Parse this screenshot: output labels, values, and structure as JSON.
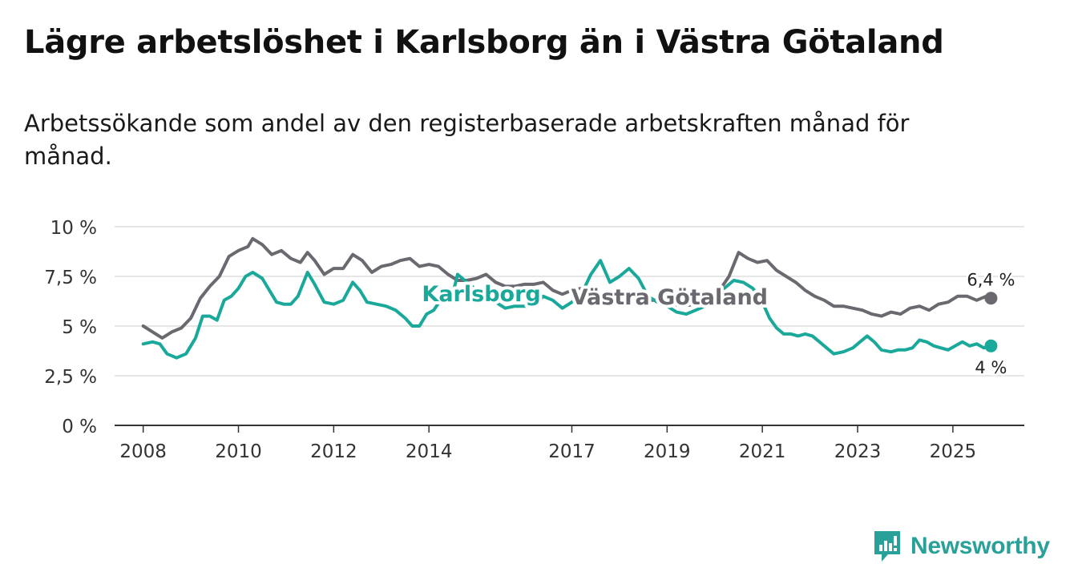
{
  "title": "Lägre arbetslöshet i Karlsborg än i Västra Götaland",
  "subtitle": "Arbetssökande som andel av den registerbaserade arbetskraften månad för månad.",
  "brand": "Newsworthy",
  "colors": {
    "karlsborg": "#1aa89a",
    "vg": "#6b6870",
    "grid": "#dddddd",
    "axis": "#333333",
    "brand": "#2aa198"
  },
  "chart_data": {
    "type": "line",
    "title": "Lägre arbetslöshet i Karlsborg än i Västra Götaland",
    "ylabel": "",
    "xlabel": "",
    "ylim": [
      0,
      10
    ],
    "xlim": [
      2007.4,
      2026.5
    ],
    "y_ticks": [
      0,
      2.5,
      5,
      7.5,
      10
    ],
    "y_tick_labels": [
      "0 %",
      "2,5 %",
      "5 %",
      "7,5 %",
      "10 %"
    ],
    "x_ticks": [
      2008,
      2010,
      2012,
      2014,
      2017,
      2019,
      2021,
      2023,
      2025
    ],
    "x_tick_labels": [
      "2008",
      "2010",
      "2012",
      "2014",
      "2017",
      "2019",
      "2021",
      "2023",
      "2025"
    ],
    "series": [
      {
        "name": "Västra Götaland",
        "label": "Västra Götaland",
        "end_label": "6,4 %",
        "points": [
          [
            2008.0,
            5.0
          ],
          [
            2008.2,
            4.7
          ],
          [
            2008.4,
            4.4
          ],
          [
            2008.6,
            4.7
          ],
          [
            2008.8,
            4.9
          ],
          [
            2009.0,
            5.4
          ],
          [
            2009.2,
            6.4
          ],
          [
            2009.4,
            7.0
          ],
          [
            2009.6,
            7.5
          ],
          [
            2009.8,
            8.5
          ],
          [
            2010.0,
            8.8
          ],
          [
            2010.2,
            9.0
          ],
          [
            2010.3,
            9.4
          ],
          [
            2010.5,
            9.1
          ],
          [
            2010.7,
            8.6
          ],
          [
            2010.9,
            8.8
          ],
          [
            2011.1,
            8.4
          ],
          [
            2011.3,
            8.2
          ],
          [
            2011.45,
            8.7
          ],
          [
            2011.6,
            8.3
          ],
          [
            2011.8,
            7.6
          ],
          [
            2012.0,
            7.9
          ],
          [
            2012.2,
            7.9
          ],
          [
            2012.4,
            8.6
          ],
          [
            2012.6,
            8.3
          ],
          [
            2012.8,
            7.7
          ],
          [
            2013.0,
            8.0
          ],
          [
            2013.2,
            8.1
          ],
          [
            2013.4,
            8.3
          ],
          [
            2013.6,
            8.4
          ],
          [
            2013.8,
            8.0
          ],
          [
            2014.0,
            8.1
          ],
          [
            2014.2,
            8.0
          ],
          [
            2014.4,
            7.6
          ],
          [
            2014.6,
            7.3
          ],
          [
            2014.8,
            7.3
          ],
          [
            2015.0,
            7.4
          ],
          [
            2015.2,
            7.6
          ],
          [
            2015.4,
            7.2
          ],
          [
            2015.6,
            7.0
          ],
          [
            2015.8,
            7.0
          ],
          [
            2016.0,
            7.1
          ],
          [
            2016.2,
            7.1
          ],
          [
            2016.4,
            7.2
          ],
          [
            2016.6,
            6.8
          ],
          [
            2016.8,
            6.6
          ],
          [
            2017.0,
            6.8
          ],
          [
            2017.2,
            6.9
          ],
          [
            2017.4,
            6.7
          ],
          [
            2017.6,
            6.5
          ],
          [
            2017.8,
            6.6
          ],
          [
            2018.0,
            6.5
          ],
          [
            2018.4,
            6.3
          ],
          [
            2018.8,
            6.3
          ],
          [
            2019.0,
            6.2
          ],
          [
            2019.3,
            6.0
          ],
          [
            2019.6,
            6.1
          ],
          [
            2019.9,
            6.2
          ],
          [
            2020.1,
            6.8
          ],
          [
            2020.3,
            7.5
          ],
          [
            2020.5,
            8.7
          ],
          [
            2020.7,
            8.4
          ],
          [
            2020.9,
            8.2
          ],
          [
            2021.1,
            8.3
          ],
          [
            2021.3,
            7.8
          ],
          [
            2021.5,
            7.5
          ],
          [
            2021.7,
            7.2
          ],
          [
            2021.9,
            6.8
          ],
          [
            2022.1,
            6.5
          ],
          [
            2022.3,
            6.3
          ],
          [
            2022.5,
            6.0
          ],
          [
            2022.7,
            6.0
          ],
          [
            2022.9,
            5.9
          ],
          [
            2023.1,
            5.8
          ],
          [
            2023.3,
            5.6
          ],
          [
            2023.5,
            5.5
          ],
          [
            2023.7,
            5.7
          ],
          [
            2023.9,
            5.6
          ],
          [
            2024.1,
            5.9
          ],
          [
            2024.3,
            6.0
          ],
          [
            2024.5,
            5.8
          ],
          [
            2024.7,
            6.1
          ],
          [
            2024.9,
            6.2
          ],
          [
            2025.1,
            6.5
          ],
          [
            2025.3,
            6.5
          ],
          [
            2025.5,
            6.3
          ],
          [
            2025.7,
            6.5
          ],
          [
            2025.8,
            6.4
          ]
        ]
      },
      {
        "name": "Karlsborg",
        "label": "Karlsborg",
        "end_label": "4 %",
        "points": [
          [
            2008.0,
            4.1
          ],
          [
            2008.2,
            4.2
          ],
          [
            2008.35,
            4.1
          ],
          [
            2008.5,
            3.6
          ],
          [
            2008.7,
            3.4
          ],
          [
            2008.9,
            3.6
          ],
          [
            2009.1,
            4.4
          ],
          [
            2009.25,
            5.5
          ],
          [
            2009.4,
            5.5
          ],
          [
            2009.55,
            5.3
          ],
          [
            2009.7,
            6.3
          ],
          [
            2009.85,
            6.5
          ],
          [
            2010.0,
            6.9
          ],
          [
            2010.15,
            7.5
          ],
          [
            2010.3,
            7.7
          ],
          [
            2010.5,
            7.4
          ],
          [
            2010.65,
            6.8
          ],
          [
            2010.8,
            6.2
          ],
          [
            2010.95,
            6.1
          ],
          [
            2011.1,
            6.1
          ],
          [
            2011.25,
            6.5
          ],
          [
            2011.45,
            7.7
          ],
          [
            2011.6,
            7.1
          ],
          [
            2011.8,
            6.2
          ],
          [
            2012.0,
            6.1
          ],
          [
            2012.2,
            6.3
          ],
          [
            2012.4,
            7.2
          ],
          [
            2012.55,
            6.8
          ],
          [
            2012.7,
            6.2
          ],
          [
            2012.9,
            6.1
          ],
          [
            2013.1,
            6.0
          ],
          [
            2013.3,
            5.8
          ],
          [
            2013.5,
            5.4
          ],
          [
            2013.65,
            5.0
          ],
          [
            2013.8,
            5.0
          ],
          [
            2013.95,
            5.6
          ],
          [
            2014.1,
            5.8
          ],
          [
            2014.3,
            6.5
          ],
          [
            2014.5,
            6.6
          ],
          [
            2014.6,
            7.6
          ],
          [
            2014.8,
            7.2
          ],
          [
            2015.0,
            6.8
          ],
          [
            2015.2,
            6.6
          ],
          [
            2015.4,
            6.2
          ],
          [
            2015.6,
            5.9
          ],
          [
            2015.8,
            6.0
          ],
          [
            2016.0,
            6.0
          ],
          [
            2016.2,
            6.0
          ],
          [
            2016.4,
            6.5
          ],
          [
            2016.6,
            6.3
          ],
          [
            2016.8,
            5.9
          ],
          [
            2017.0,
            6.2
          ],
          [
            2017.2,
            6.6
          ],
          [
            2017.4,
            7.6
          ],
          [
            2017.6,
            8.3
          ],
          [
            2017.8,
            7.2
          ],
          [
            2018.0,
            7.5
          ],
          [
            2018.2,
            7.9
          ],
          [
            2018.4,
            7.4
          ],
          [
            2018.6,
            6.5
          ],
          [
            2018.8,
            6.2
          ],
          [
            2019.0,
            6.0
          ],
          [
            2019.2,
            5.7
          ],
          [
            2019.4,
            5.6
          ],
          [
            2019.6,
            5.8
          ],
          [
            2019.8,
            6.0
          ],
          [
            2020.0,
            6.4
          ],
          [
            2020.2,
            6.9
          ],
          [
            2020.4,
            7.3
          ],
          [
            2020.6,
            7.2
          ],
          [
            2020.8,
            6.9
          ],
          [
            2021.0,
            6.2
          ],
          [
            2021.15,
            5.4
          ],
          [
            2021.3,
            4.9
          ],
          [
            2021.45,
            4.6
          ],
          [
            2021.6,
            4.6
          ],
          [
            2021.75,
            4.5
          ],
          [
            2021.9,
            4.6
          ],
          [
            2022.05,
            4.5
          ],
          [
            2022.2,
            4.2
          ],
          [
            2022.35,
            3.9
          ],
          [
            2022.5,
            3.6
          ],
          [
            2022.7,
            3.7
          ],
          [
            2022.9,
            3.9
          ],
          [
            2023.05,
            4.2
          ],
          [
            2023.2,
            4.5
          ],
          [
            2023.35,
            4.2
          ],
          [
            2023.5,
            3.8
          ],
          [
            2023.7,
            3.7
          ],
          [
            2023.85,
            3.8
          ],
          [
            2024.0,
            3.8
          ],
          [
            2024.15,
            3.9
          ],
          [
            2024.3,
            4.3
          ],
          [
            2024.45,
            4.2
          ],
          [
            2024.6,
            4.0
          ],
          [
            2024.75,
            3.9
          ],
          [
            2024.9,
            3.8
          ],
          [
            2025.05,
            4.0
          ],
          [
            2025.2,
            4.2
          ],
          [
            2025.35,
            4.0
          ],
          [
            2025.5,
            4.1
          ],
          [
            2025.65,
            3.9
          ],
          [
            2025.8,
            4.0
          ]
        ]
      }
    ]
  }
}
